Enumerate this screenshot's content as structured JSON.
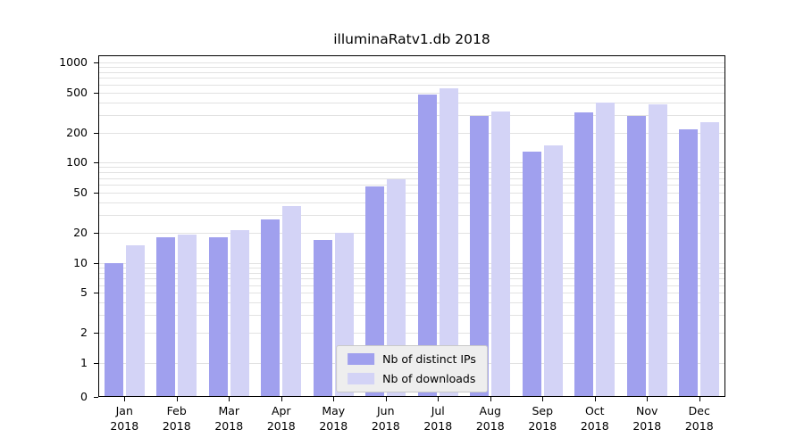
{
  "title": "illuminaRatv1.db 2018",
  "colors": {
    "ips": "#a0a0ee",
    "downloads": "#d3d3f6",
    "grid": "#e2e2e2",
    "axis": "#000000",
    "legend_bg": "#eeeeee",
    "legend_border": "#c9c9c9"
  },
  "legend": {
    "items": [
      {
        "label": "Nb of distinct IPs",
        "series": "ips"
      },
      {
        "label": "Nb of downloads",
        "series": "downloads"
      }
    ]
  },
  "chart_data": {
    "type": "bar",
    "title": "illuminaRatv1.db 2018",
    "categories": [
      "Jan",
      "Feb",
      "Mar",
      "Apr",
      "May",
      "Jun",
      "Jul",
      "Aug",
      "Sep",
      "Oct",
      "Nov",
      "Dec"
    ],
    "year": "2018",
    "series": [
      {
        "name": "Nb of distinct IPs",
        "color": "#a0a0ee",
        "values": [
          10,
          18,
          18,
          27,
          17,
          58,
          480,
          290,
          128,
          320,
          295,
          215
        ]
      },
      {
        "name": "Nb of downloads",
        "color": "#d3d3f6",
        "values": [
          15,
          19,
          21,
          37,
          20,
          68,
          550,
          325,
          148,
          400,
          380,
          255
        ]
      }
    ],
    "yscale": "symlog",
    "ylim": [
      0,
      1000
    ],
    "y_ticks": [
      0,
      1,
      2,
      5,
      10,
      20,
      50,
      100,
      200,
      500,
      1000
    ],
    "grid": "horizontal-log-minor",
    "legend_position": "lower center",
    "xlabel": "",
    "ylabel": ""
  }
}
